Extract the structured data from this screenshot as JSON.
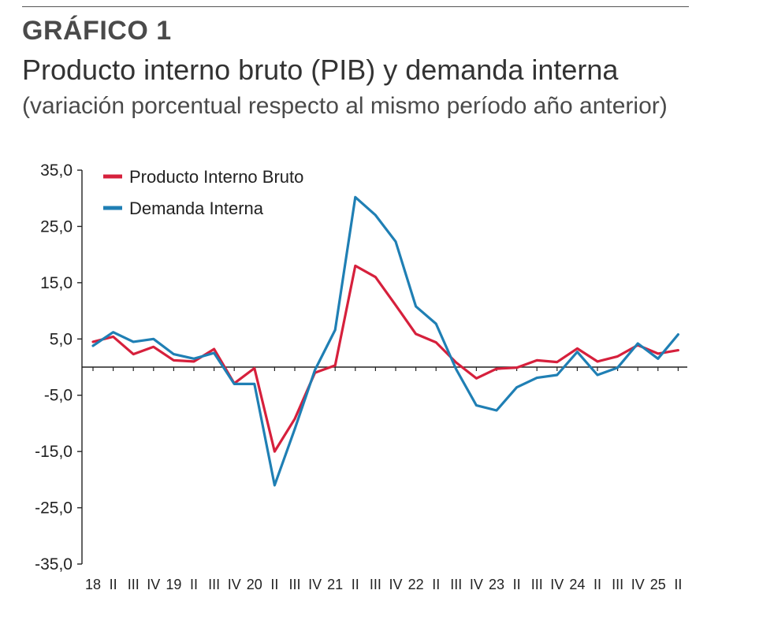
{
  "header": {
    "number": "GRÁFICO 1",
    "title": "Producto interno bruto (PIB) y demanda interna",
    "subtitle": "(variación porcentual respecto al mismo período año anterior)"
  },
  "chart_data": {
    "type": "line",
    "title": "Producto interno bruto (PIB) y demanda interna",
    "subtitle": "(variación porcentual respecto al mismo período año anterior)",
    "ylim": [
      -35,
      35
    ],
    "yticks": [
      35,
      25,
      15,
      5,
      -5,
      -15,
      -25,
      -35
    ],
    "ytick_labels": [
      "35,0",
      "25,0",
      "15,0",
      "5,0",
      "-5,0",
      "-15,0",
      "-25,0",
      "-35,0"
    ],
    "x_labels": [
      "18",
      "II",
      "III",
      "IV",
      "19",
      "II",
      "III",
      "IV",
      "20",
      "II",
      "III",
      "IV",
      "21",
      "II",
      "III",
      "IV",
      "22",
      "II",
      "III",
      "IV",
      "23",
      "II",
      "III",
      "IV",
      "24",
      "II",
      "III",
      "IV",
      "25",
      "II"
    ],
    "legend_position": "top-left",
    "series": [
      {
        "name": "Producto Interno Bruto",
        "color": "#d6203c",
        "values": [
          4.5,
          5.4,
          2.3,
          3.6,
          1.2,
          1.0,
          3.2,
          -2.9,
          -0.2,
          -15.0,
          -9.2,
          -1.0,
          0.3,
          18.0,
          16.0,
          11.0,
          5.9,
          4.4,
          0.8,
          -2.0,
          -0.3,
          -0.1,
          1.2,
          0.9,
          3.3,
          1.0,
          1.9,
          3.9,
          2.4,
          3.0
        ]
      },
      {
        "name": "Demanda Interna",
        "color": "#1f7fb4",
        "values": [
          3.8,
          6.2,
          4.5,
          5.0,
          2.3,
          1.5,
          2.5,
          -3.0,
          -3.0,
          -21.0,
          -11.0,
          -0.5,
          6.6,
          30.2,
          27.0,
          22.3,
          10.8,
          7.7,
          -0.4,
          -6.8,
          -7.7,
          -3.6,
          -1.9,
          -1.4,
          2.7,
          -1.4,
          -0.1,
          4.2,
          1.5,
          5.8
        ]
      }
    ]
  }
}
